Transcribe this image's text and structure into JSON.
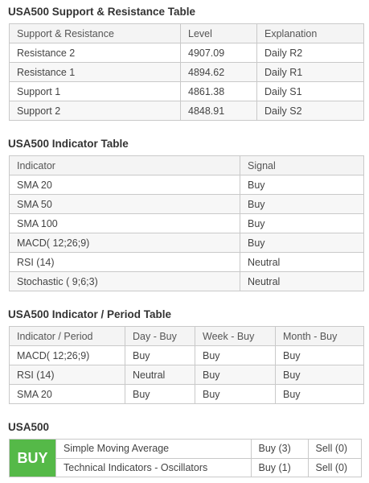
{
  "sr": {
    "title": "USA500 Support & Resistance Table",
    "headers": [
      "Support & Resistance",
      "Level",
      "Explanation"
    ],
    "rows": [
      [
        "Resistance 2",
        "4907.09",
        "Daily R2"
      ],
      [
        "Resistance 1",
        "4894.62",
        "Daily R1"
      ],
      [
        "Support 1",
        "4861.38",
        "Daily S1"
      ],
      [
        "Support 2",
        "4848.91",
        "Daily S2"
      ]
    ]
  },
  "ind": {
    "title": "USA500 Indicator Table",
    "headers": [
      "Indicator",
      "Signal"
    ],
    "rows": [
      [
        "SMA 20",
        "Buy"
      ],
      [
        "SMA 50",
        "Buy"
      ],
      [
        "SMA 100",
        "Buy"
      ],
      [
        "MACD( 12;26;9)",
        "Buy"
      ],
      [
        "RSI (14)",
        "Neutral"
      ],
      [
        "Stochastic ( 9;6;3)",
        "Neutral"
      ]
    ]
  },
  "period": {
    "title": "USA500 Indicator / Period Table",
    "headers": [
      "Indicator / Period",
      "Day - Buy",
      "Week - Buy",
      "Month - Buy"
    ],
    "rows": [
      [
        "MACD( 12;26;9)",
        "Buy",
        "Buy",
        "Buy"
      ],
      [
        "RSI (14)",
        "Neutral",
        "Buy",
        "Buy"
      ],
      [
        "SMA 20",
        "Buy",
        "Buy",
        "Buy"
      ]
    ]
  },
  "summary": {
    "title": "USA500",
    "badge": "BUY",
    "badge_color": "#55b948",
    "rows": [
      [
        "Simple Moving Average",
        "Buy (3)",
        "Sell (0)"
      ],
      [
        "Technical Indicators - Oscillators",
        "Buy (1)",
        "Sell (0)"
      ]
    ]
  }
}
